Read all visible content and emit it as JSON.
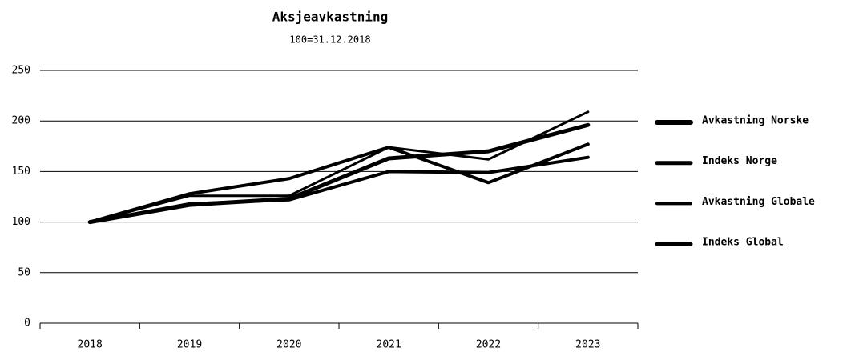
{
  "chart_data": {
    "type": "line",
    "title": "Aksjeavkastning",
    "subtitle": "100=31.12.2018",
    "categories": [
      "2018",
      "2019",
      "2020",
      "2021",
      "2022",
      "2023"
    ],
    "series": [
      {
        "name": "Avkastning Norske",
        "color": "#000000",
        "width": 5,
        "values": [
          100,
          117,
          123,
          163,
          170,
          196
        ]
      },
      {
        "name": "Indeks Norge",
        "color": "#000000",
        "width": 4,
        "values": [
          100,
          128,
          143,
          174,
          139,
          177
        ]
      },
      {
        "name": "Avkastning Globale",
        "color": "#000000",
        "width": 3,
        "values": [
          100,
          126,
          126,
          174,
          162,
          209
        ]
      },
      {
        "name": "Indeks Global",
        "color": "#000000",
        "width": 4,
        "values": [
          100,
          118,
          122,
          150,
          149,
          164
        ]
      }
    ],
    "ylim": [
      0,
      250
    ],
    "yticks": [
      0,
      50,
      100,
      150,
      200,
      250
    ],
    "grid": true,
    "legend": "right"
  }
}
